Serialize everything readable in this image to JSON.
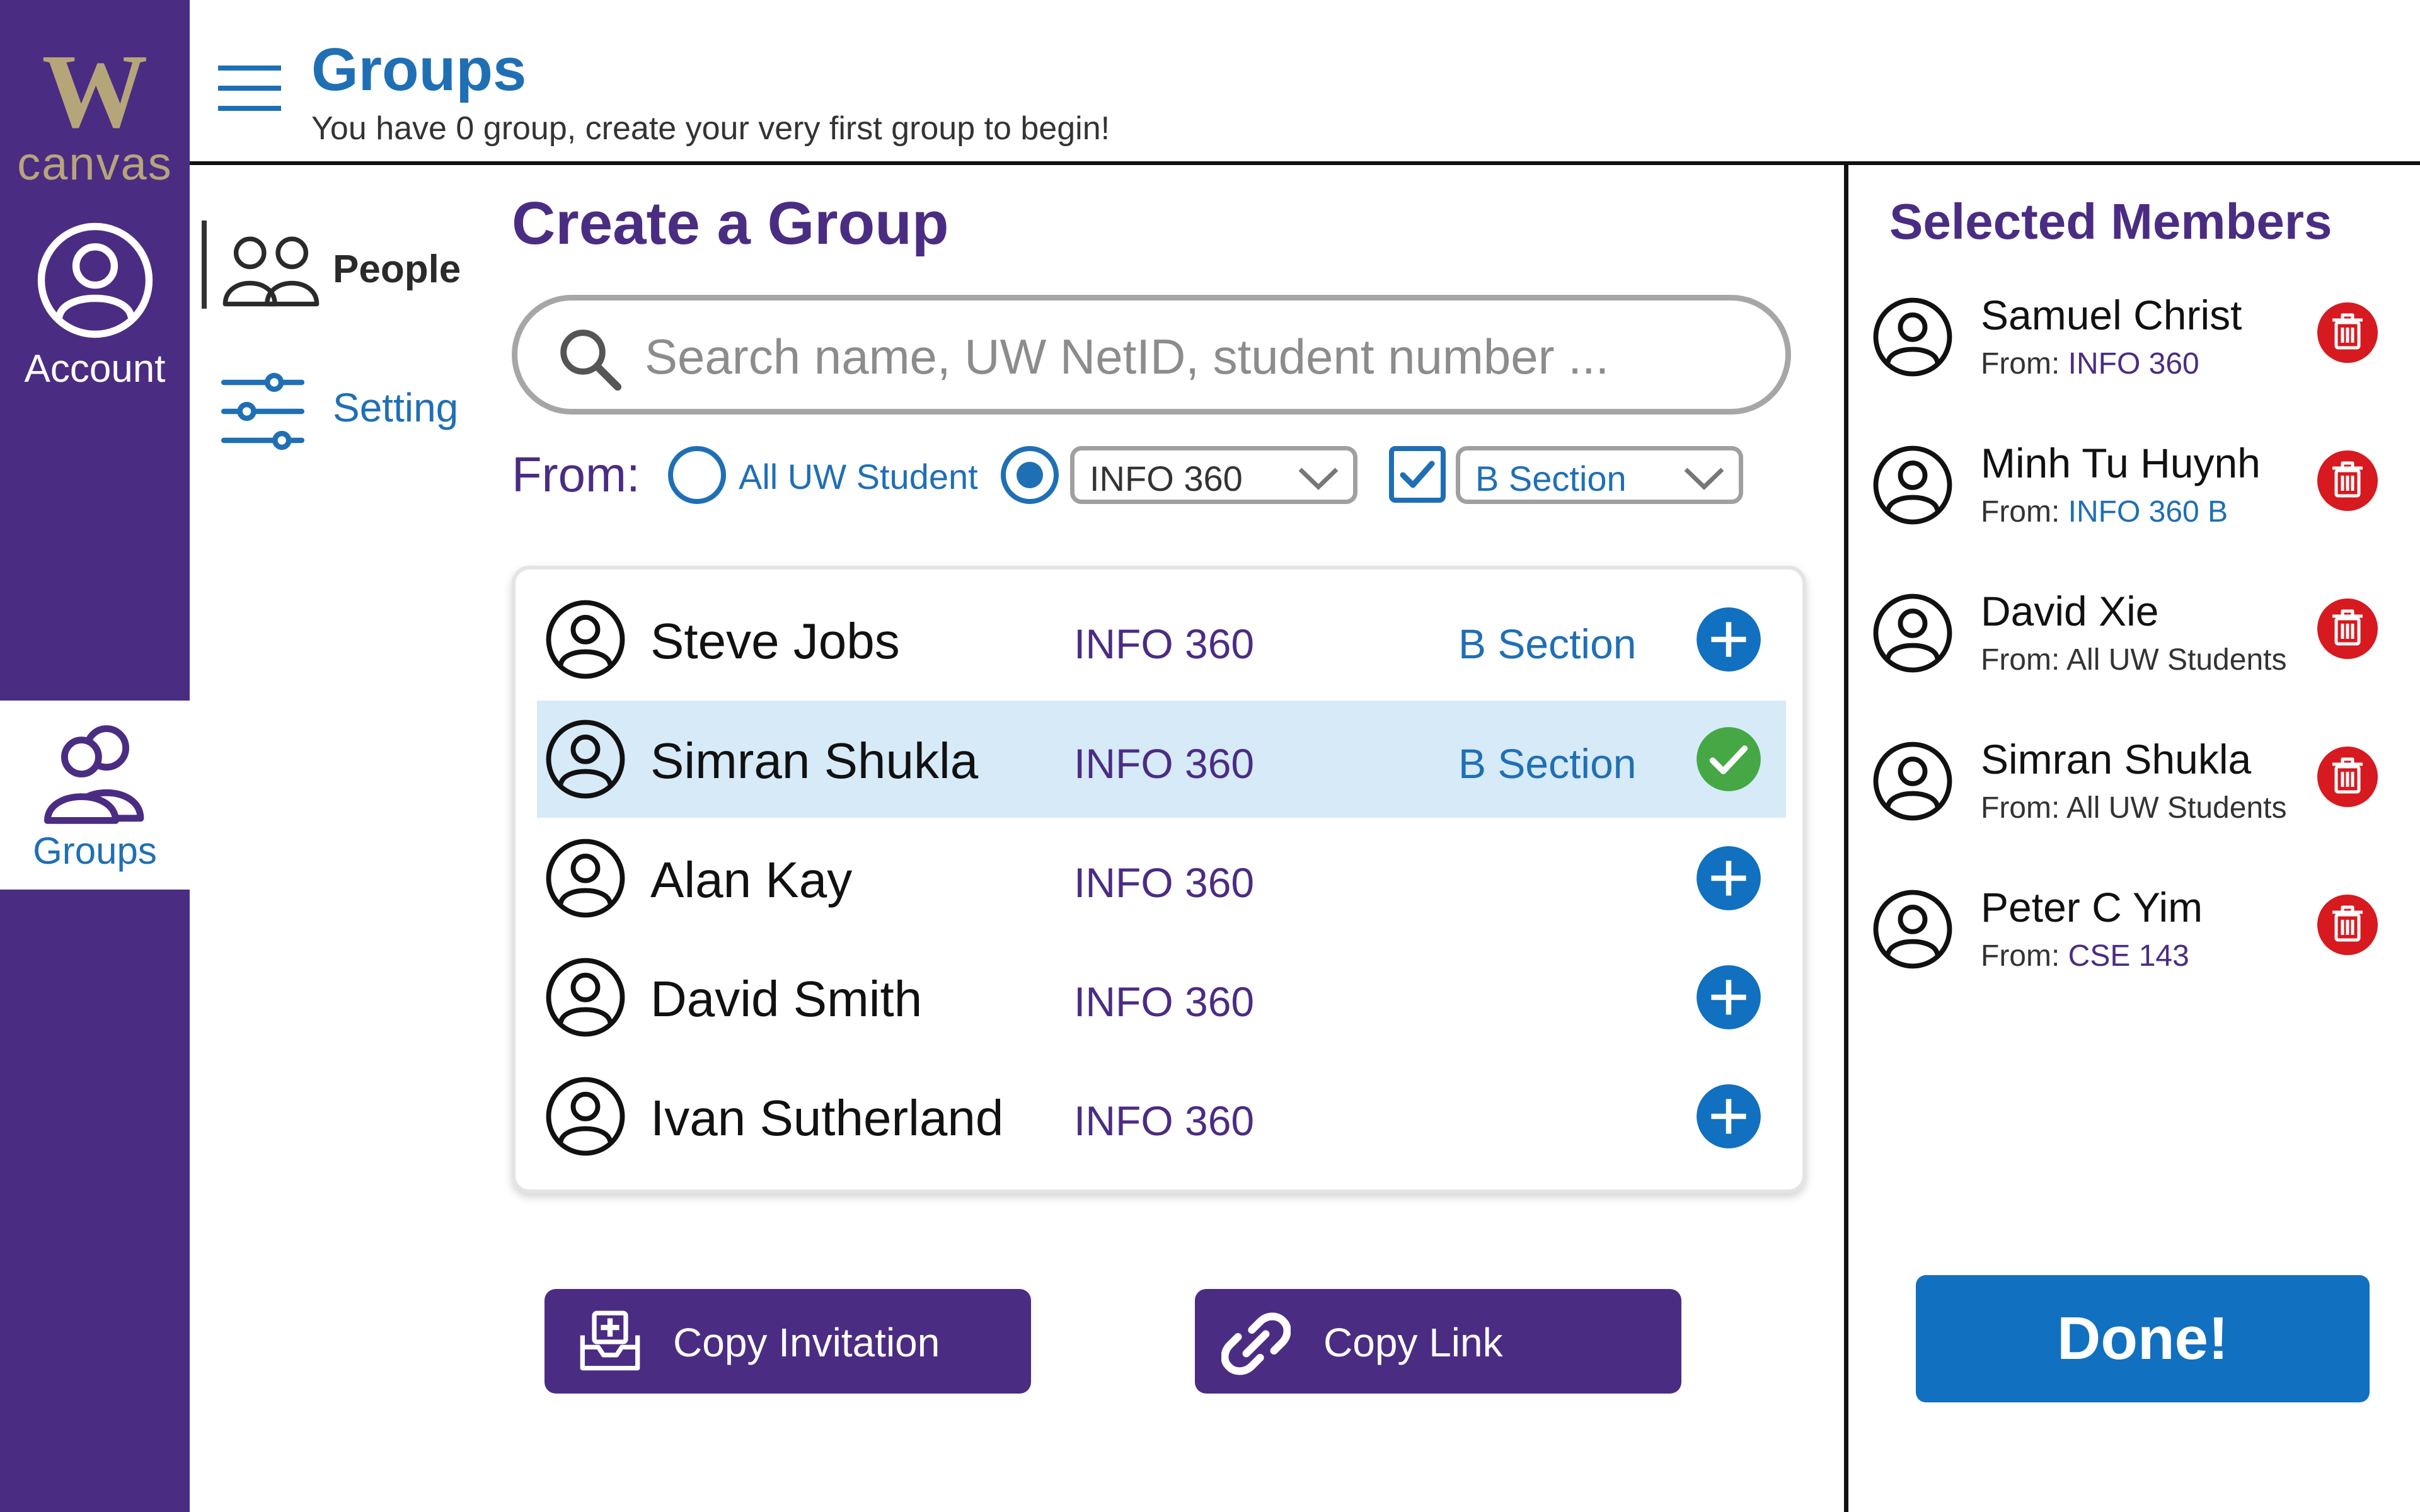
{
  "brand": {
    "logo_letter": "W",
    "logo_text": "canvas",
    "purple": "#4b2c83",
    "gold": "#b7a57a",
    "blue": "#1f6fb5"
  },
  "global_nav": {
    "account_label": "Account",
    "groups_label": "Groups"
  },
  "header": {
    "title": "Groups",
    "subtitle": "You have 0 group, create your very first group to begin!"
  },
  "sub_nav": {
    "people_label": "People",
    "setting_label": "Setting"
  },
  "create": {
    "title": "Create a Group",
    "search_placeholder": "Search name, UW NetID, student number ...",
    "from_label": "From:",
    "option_all": "All UW Student",
    "option_class": "INFO 360",
    "option_section": "B Section"
  },
  "people": [
    {
      "name": "Steve Jobs",
      "class": "INFO 360",
      "section": "B Section",
      "state": "add"
    },
    {
      "name": "Simran Shukla",
      "class": "INFO 360",
      "section": "B Section",
      "state": "added"
    },
    {
      "name": "Alan Kay",
      "class": "INFO 360",
      "section": "",
      "state": "add"
    },
    {
      "name": "David Smith",
      "class": "INFO 360",
      "section": "",
      "state": "add"
    },
    {
      "name": "Ivan Sutherland",
      "class": "INFO 360",
      "section": "",
      "state": "add"
    }
  ],
  "actions": {
    "copy_invitation": "Copy Invitation",
    "copy_link": "Copy Link"
  },
  "selected": {
    "title": "Selected Members",
    "from_prefix": "From: ",
    "members": [
      {
        "name": "Samuel Christ",
        "from": "INFO 360"
      },
      {
        "name": "Minh Tu Huynh",
        "from": "INFO 360 B"
      },
      {
        "name": "David Xie",
        "from": "All UW Students"
      },
      {
        "name": "Simran Shukla",
        "from": "All UW Students"
      },
      {
        "name": "Peter C Yim",
        "from": "CSE 143"
      }
    ],
    "done_label": "Done!"
  }
}
